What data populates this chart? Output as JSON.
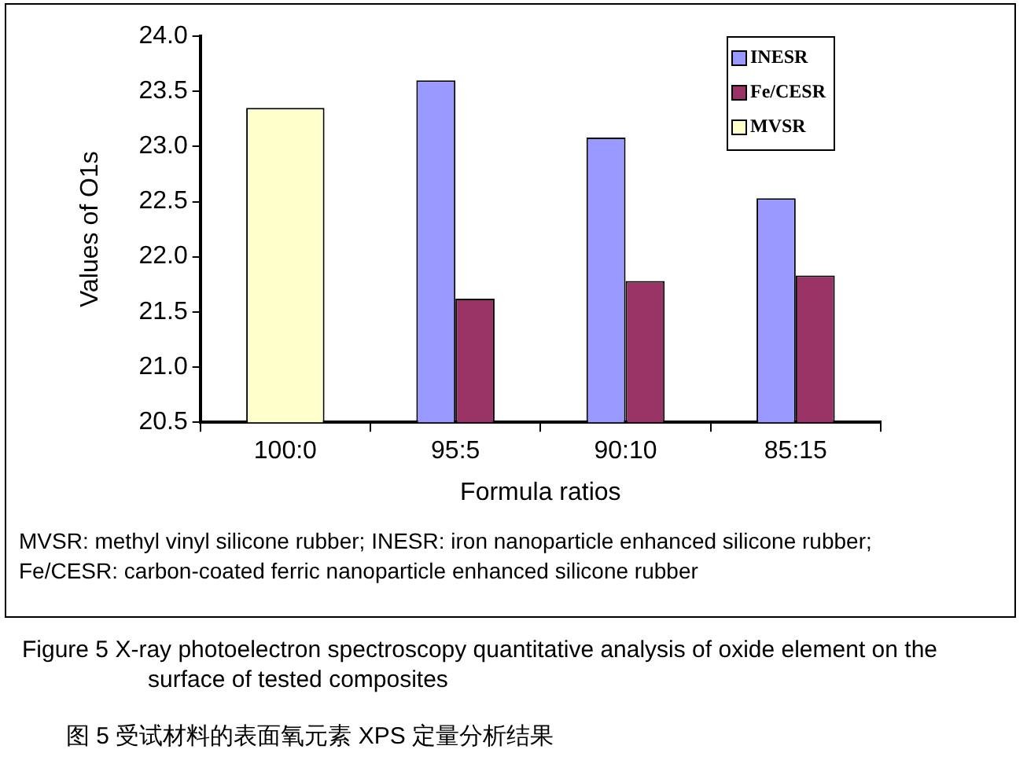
{
  "chart_data": {
    "type": "bar",
    "categories": [
      "100:0",
      "95:5",
      "90:10",
      "85:15"
    ],
    "series": [
      {
        "name": "INESR",
        "color": "#9999ff",
        "values": [
          null,
          23.6,
          23.08,
          22.53
        ]
      },
      {
        "name": "Fe/CESR",
        "color": "#993366",
        "values": [
          null,
          21.62,
          21.78,
          21.83
        ]
      },
      {
        "name": "MVSR",
        "color": "#ffffcc",
        "values": [
          23.35,
          null,
          null,
          null
        ]
      }
    ],
    "xlabel": "Formula ratios",
    "ylabel": "Values of O1s",
    "ylim": [
      20.5,
      24.0
    ],
    "yticks": [
      {
        "value": 20.5,
        "label": "20.5"
      },
      {
        "value": 21,
        "label": "21.0"
      },
      {
        "value": 21.5,
        "label": "21.5"
      },
      {
        "value": 22,
        "label": "22.0"
      },
      {
        "value": 22.5,
        "label": "22.5"
      },
      {
        "value": 23,
        "label": "23.0"
      },
      {
        "value": 23.5,
        "label": "23.5"
      },
      {
        "value": 24,
        "label": "24.0"
      }
    ],
    "grid": false,
    "legend": "top right",
    "annotations": [
      "MVSR: methyl vinyl silicone rubber; INESR: iron nanoparticle enhanced silicone rubber; Fe/CESR: carbon-coated ferric nanoparticle enhanced silicone rubber",
      "Figure 5    X-ray photoelectron spectroscopy quantitative analysis of oxide element on the surface of tested composites",
      "图 5    受试材料的表面氧元素 XPS 定量分析结果"
    ]
  }
}
